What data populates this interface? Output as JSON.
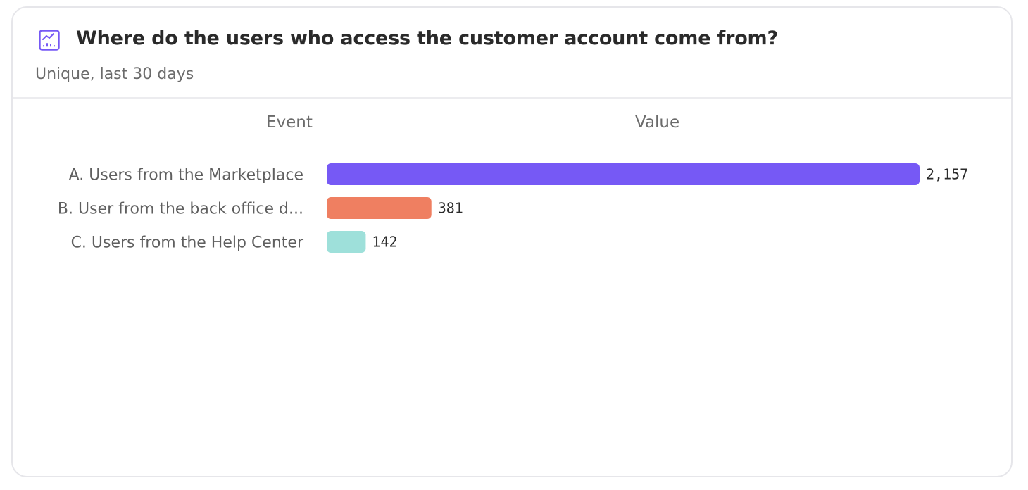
{
  "header": {
    "title": "Where do the users who access the customer account come from?",
    "subtitle": "Unique, last 30 days",
    "icon": "line-chart-icon",
    "accent_color": "#7659f5"
  },
  "table": {
    "event_header": "Event",
    "value_header": "Value"
  },
  "chart_data": {
    "type": "bar",
    "orientation": "horizontal",
    "categories": [
      "A. Users from the Marketplace",
      "B. User from the back office d...",
      "C. Users from the Help Center"
    ],
    "values": [
      2157,
      381,
      142
    ],
    "value_labels": [
      "2,157",
      "381",
      "142"
    ],
    "colors": [
      "#7659f5",
      "#ef7f61",
      "#9ee0da"
    ],
    "title": "Where do the users who access the customer account come from?",
    "subtitle": "Unique, last 30 days",
    "xlabel": "Value",
    "ylabel": "Event",
    "xlim": [
      0,
      2157
    ],
    "grid": false,
    "legend": "none"
  }
}
